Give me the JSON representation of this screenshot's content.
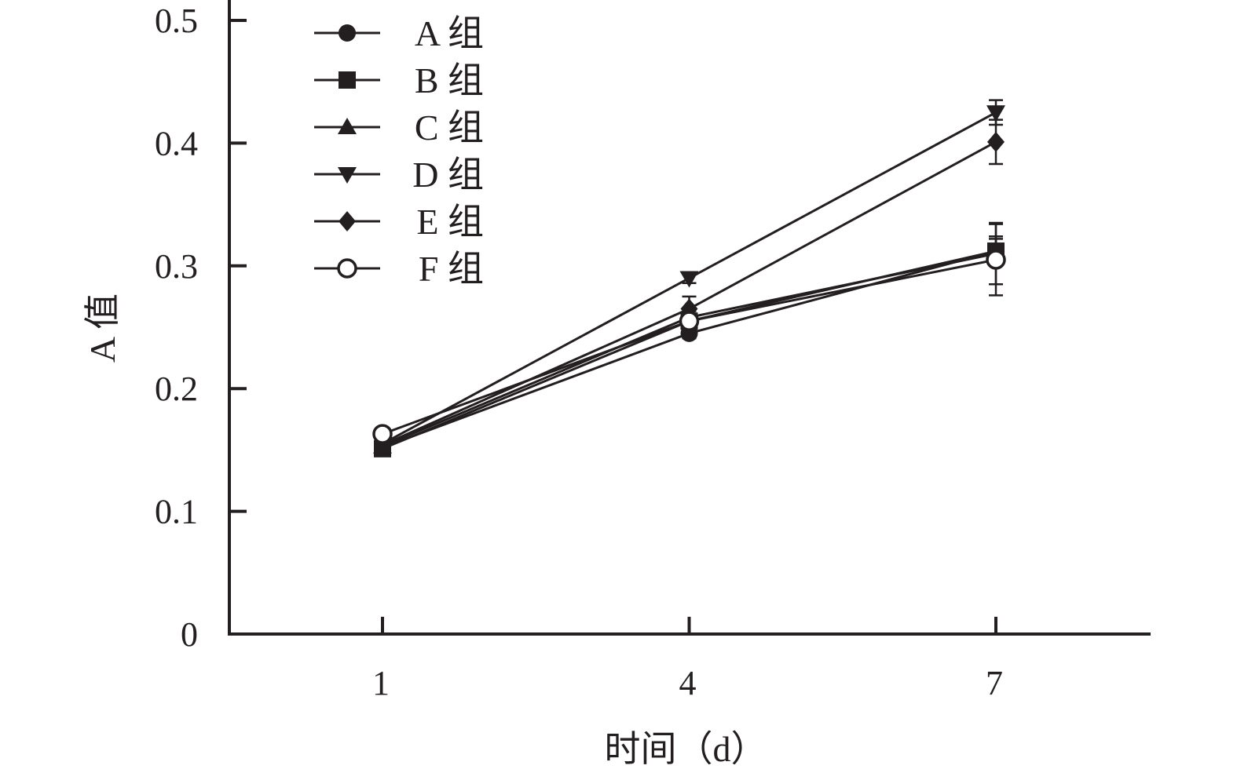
{
  "chart_data": {
    "type": "line",
    "title": "",
    "xlabel": "时间（d）",
    "ylabel": "A 值",
    "categories": [
      "1",
      "4",
      "7"
    ],
    "x": [
      1,
      4,
      7
    ],
    "ylim": [
      0,
      0.5
    ],
    "yticks": [
      "0",
      "0.1",
      "0.2",
      "0.3",
      "0.4",
      "0.5"
    ],
    "grid": false,
    "legend_position": "top-left",
    "series": [
      {
        "name": "A 组",
        "marker": "circle-filled",
        "values": [
          0.152,
          0.245,
          0.312
        ],
        "errors": [
          0.003,
          0.004,
          0.01
        ]
      },
      {
        "name": "B 组",
        "marker": "square-filled",
        "values": [
          0.151,
          0.255,
          0.312
        ],
        "errors": [
          0.003,
          0.005,
          0.012
        ]
      },
      {
        "name": "C 组",
        "marker": "triangle-up",
        "values": [
          0.153,
          0.258,
          0.31
        ],
        "errors": [
          0.003,
          0.005,
          0.025
        ]
      },
      {
        "name": "D 组",
        "marker": "triangle-down",
        "values": [
          0.155,
          0.29,
          0.425
        ],
        "errors": [
          0.003,
          0.004,
          0.01
        ]
      },
      {
        "name": "E 组",
        "marker": "diamond-filled",
        "values": [
          0.154,
          0.265,
          0.401
        ],
        "errors": [
          0.003,
          0.01,
          0.018
        ]
      },
      {
        "name": "F 组",
        "marker": "circle-open",
        "values": [
          0.163,
          0.255,
          0.305
        ],
        "errors": [
          0.003,
          0.006,
          0.029
        ]
      }
    ],
    "colors": {
      "ink": "#231f20",
      "background": "#ffffff"
    }
  }
}
